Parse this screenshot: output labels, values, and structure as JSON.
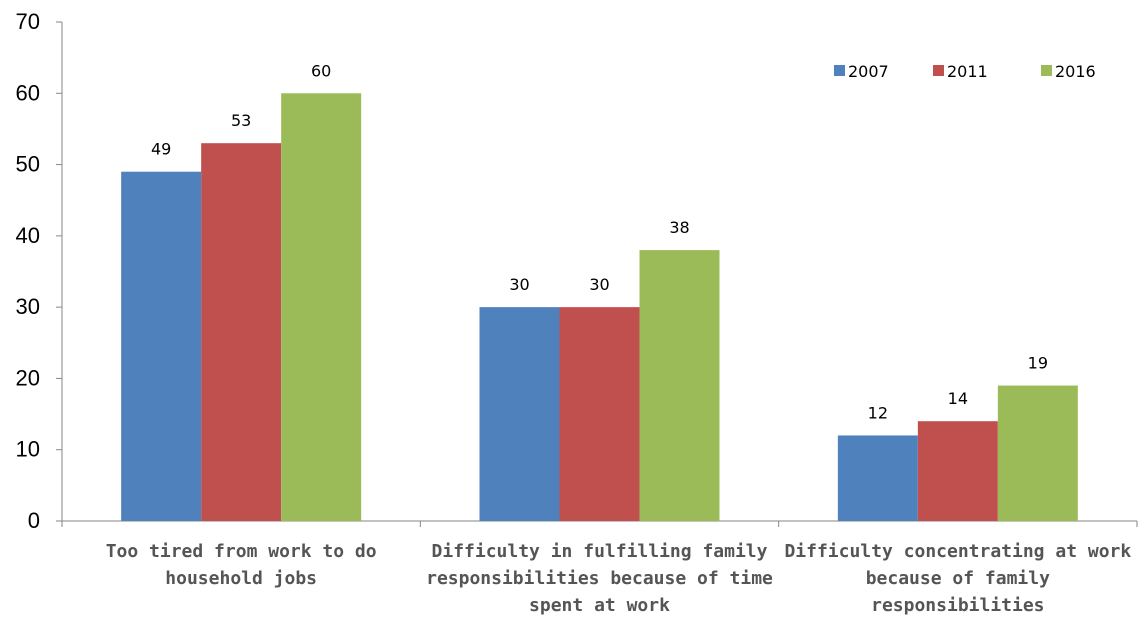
{
  "chart_data": {
    "type": "bar",
    "title": "",
    "xlabel": "",
    "ylabel": "",
    "ylim": [
      0,
      70
    ],
    "yticks": [
      0,
      10,
      20,
      30,
      40,
      50,
      60,
      70
    ],
    "grid": false,
    "legend_position": "top-right",
    "categories": [
      [
        "Too tired from work to do",
        "household jobs"
      ],
      [
        "Difficulty in fulfilling family",
        "responsibilities because of time",
        "spent at work"
      ],
      [
        "Difficulty concentrating at work",
        "because of family",
        "responsibilities"
      ]
    ],
    "series": [
      {
        "name": "2007",
        "color": "#4F81BD",
        "values": [
          49,
          30,
          12
        ]
      },
      {
        "name": "2011",
        "color": "#C0504D",
        "values": [
          53,
          30,
          14
        ]
      },
      {
        "name": "2016",
        "color": "#9BBB59",
        "values": [
          60,
          38,
          19
        ]
      }
    ]
  }
}
